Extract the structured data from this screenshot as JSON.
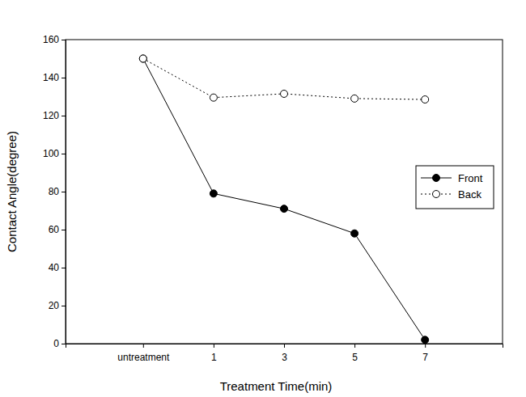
{
  "chart_data": {
    "type": "line",
    "x_label": "Treatment Time(min)",
    "y_label": "Contact Angle(degree)",
    "categories": [
      "untreatment",
      "1",
      "3",
      "5",
      "7"
    ],
    "series": [
      {
        "name": "Front",
        "color": "#000000",
        "marker": "filled-circle",
        "line_style": "solid",
        "values": [
          150,
          79,
          71,
          58,
          2
        ]
      },
      {
        "name": "Back",
        "color": "#000000",
        "marker": "open-circle",
        "line_style": "dotted",
        "values": [
          150,
          129.5,
          131.5,
          129,
          128.5
        ]
      }
    ],
    "ylim": [
      0,
      160
    ],
    "yticks": [
      0,
      20,
      40,
      60,
      80,
      100,
      120,
      140,
      160
    ],
    "grid": false,
    "legend": "right"
  }
}
